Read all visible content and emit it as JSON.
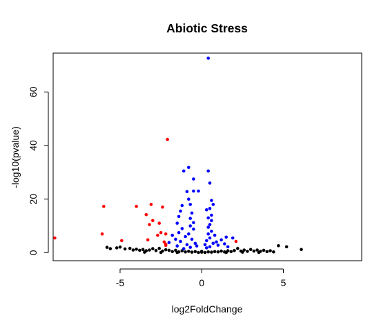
{
  "chart_data": {
    "type": "scatter",
    "title": "Abiotic Stress",
    "xlabel": "log2FoldChange",
    "ylabel": "-log10(pvalue)",
    "xlim": [
      -9.1,
      9.8
    ],
    "ylim": [
      -3,
      74.5
    ],
    "x_ticks": [
      -5,
      0,
      5
    ],
    "x_tick_labels": [
      "-5",
      "0",
      "5"
    ],
    "y_ticks": [
      0,
      20,
      40,
      60
    ],
    "y_tick_labels": [
      "0",
      "20",
      "40",
      "60"
    ],
    "grid": false,
    "legend": "none",
    "colors": {
      "not_significant": "#000000",
      "significant_small_fc": "#0000ff",
      "significant_large_fc": "#ff0000"
    },
    "series": [
      {
        "color": "#0000ff",
        "points": [
          [
            0.4,
            72.6
          ],
          [
            -0.8,
            31.8
          ],
          [
            -1.1,
            30.5
          ],
          [
            0.4,
            30.5
          ],
          [
            -0.5,
            27.5
          ],
          [
            0.5,
            26.0
          ],
          [
            -0.2,
            23.0
          ],
          [
            -0.5,
            23.0
          ],
          [
            -0.9,
            22.8
          ],
          [
            -0.8,
            20.0
          ],
          [
            0.6,
            19.5
          ],
          [
            0.7,
            18.0
          ],
          [
            -0.7,
            18.0
          ],
          [
            -1.2,
            17.6
          ],
          [
            0.5,
            16.5
          ],
          [
            0.3,
            16.0
          ],
          [
            -1.3,
            15.5
          ],
          [
            -0.6,
            14.8
          ],
          [
            0.6,
            14.0
          ],
          [
            -1.4,
            13.5
          ],
          [
            0.4,
            13.0
          ],
          [
            -0.7,
            12.8
          ],
          [
            0.6,
            12.0
          ],
          [
            -1.5,
            11.0
          ],
          [
            -0.5,
            11.2
          ],
          [
            0.5,
            10.5
          ],
          [
            -0.7,
            10.0
          ],
          [
            0.4,
            9.5
          ],
          [
            -1.2,
            9.0
          ],
          [
            -0.5,
            8.8
          ],
          [
            0.6,
            8.0
          ],
          [
            -1.4,
            7.5
          ],
          [
            -0.8,
            7.0
          ],
          [
            0.4,
            7.0
          ],
          [
            -1.8,
            6.5
          ],
          [
            0.8,
            6.5
          ],
          [
            -1.0,
            6.0
          ],
          [
            0.5,
            5.5
          ],
          [
            1.5,
            5.8
          ],
          [
            1.9,
            5.5
          ],
          [
            -1.6,
            5.0
          ],
          [
            -0.6,
            5.0
          ],
          [
            1.2,
            4.8
          ],
          [
            0.3,
            4.5
          ],
          [
            -1.3,
            4.2
          ],
          [
            0.9,
            4.0
          ],
          [
            -2.0,
            3.8
          ],
          [
            -0.4,
            3.5
          ],
          [
            0.7,
            3.5
          ],
          [
            1.4,
            3.3
          ],
          [
            -0.9,
            3.0
          ],
          [
            0.2,
            3.0
          ],
          [
            1.0,
            2.8
          ],
          [
            -1.5,
            2.5
          ],
          [
            -0.3,
            2.5
          ],
          [
            0.5,
            2.2
          ],
          [
            1.6,
            2.2
          ],
          [
            -0.7,
            2.0
          ],
          [
            0.3,
            1.8
          ],
          [
            -1.1,
            1.5
          ]
        ]
      },
      {
        "color": "#ff0000",
        "points": [
          [
            -2.1,
            42.3
          ],
          [
            -6.0,
            17.3
          ],
          [
            -4.0,
            17.3
          ],
          [
            -3.1,
            18.0
          ],
          [
            -2.4,
            17.0
          ],
          [
            -3.4,
            14.2
          ],
          [
            -3.0,
            12.0
          ],
          [
            -2.6,
            11.0
          ],
          [
            -3.2,
            10.5
          ],
          [
            -6.1,
            7.0
          ],
          [
            -2.5,
            7.5
          ],
          [
            -2.2,
            7.0
          ],
          [
            -2.7,
            6.5
          ],
          [
            -9.0,
            5.5
          ],
          [
            -3.3,
            4.8
          ],
          [
            -4.9,
            4.5
          ],
          [
            -2.3,
            4.0
          ],
          [
            -2.2,
            3.2
          ],
          [
            -2.2,
            2.7
          ],
          [
            2.1,
            4.2
          ]
        ]
      },
      {
        "color": "#000000",
        "points": [
          [
            -5.8,
            2.0
          ],
          [
            -5.6,
            1.5
          ],
          [
            -5.2,
            1.8
          ],
          [
            -5.0,
            2.1
          ],
          [
            -4.7,
            1.4
          ],
          [
            -4.4,
            1.6
          ],
          [
            -4.2,
            1.0
          ],
          [
            -4.0,
            1.3
          ],
          [
            -3.8,
            0.9
          ],
          [
            -3.6,
            1.2
          ],
          [
            -3.4,
            0.7
          ],
          [
            -3.2,
            1.0
          ],
          [
            -3.0,
            1.5
          ],
          [
            -2.8,
            0.8
          ],
          [
            -2.6,
            1.6
          ],
          [
            -2.4,
            0.6
          ],
          [
            -2.2,
            1.1
          ],
          [
            -2.0,
            0.9
          ],
          [
            -1.8,
            0.4
          ],
          [
            -1.6,
            0.9
          ],
          [
            -1.4,
            0.3
          ],
          [
            -1.2,
            0.7
          ],
          [
            -1.0,
            0.3
          ],
          [
            -0.8,
            0.5
          ],
          [
            -0.6,
            0.2
          ],
          [
            -0.4,
            0.4
          ],
          [
            -0.2,
            0.1
          ],
          [
            0.0,
            0.2
          ],
          [
            0.2,
            0.1
          ],
          [
            0.4,
            0.3
          ],
          [
            0.6,
            0.2
          ],
          [
            0.8,
            0.4
          ],
          [
            1.0,
            0.3
          ],
          [
            1.2,
            0.6
          ],
          [
            1.4,
            0.3
          ],
          [
            1.6,
            0.7
          ],
          [
            1.8,
            0.4
          ],
          [
            2.0,
            0.8
          ],
          [
            2.2,
            1.6
          ],
          [
            2.4,
            0.6
          ],
          [
            2.6,
            1.0
          ],
          [
            2.8,
            0.5
          ],
          [
            3.0,
            1.2
          ],
          [
            3.2,
            0.6
          ],
          [
            3.4,
            1.0
          ],
          [
            3.6,
            0.5
          ],
          [
            3.8,
            0.9
          ],
          [
            4.0,
            0.4
          ],
          [
            4.2,
            0.7
          ],
          [
            4.4,
            0.3
          ],
          [
            4.7,
            2.6
          ],
          [
            5.2,
            2.2
          ],
          [
            6.1,
            1.2
          ],
          [
            -3.5,
            0.2
          ],
          [
            3.5,
            0.1
          ],
          [
            -2.5,
            0.1
          ],
          [
            2.5,
            0.2
          ],
          [
            -1.5,
            0.1
          ],
          [
            1.5,
            0.1
          ],
          [
            0.0,
            0.5
          ]
        ]
      }
    ]
  }
}
